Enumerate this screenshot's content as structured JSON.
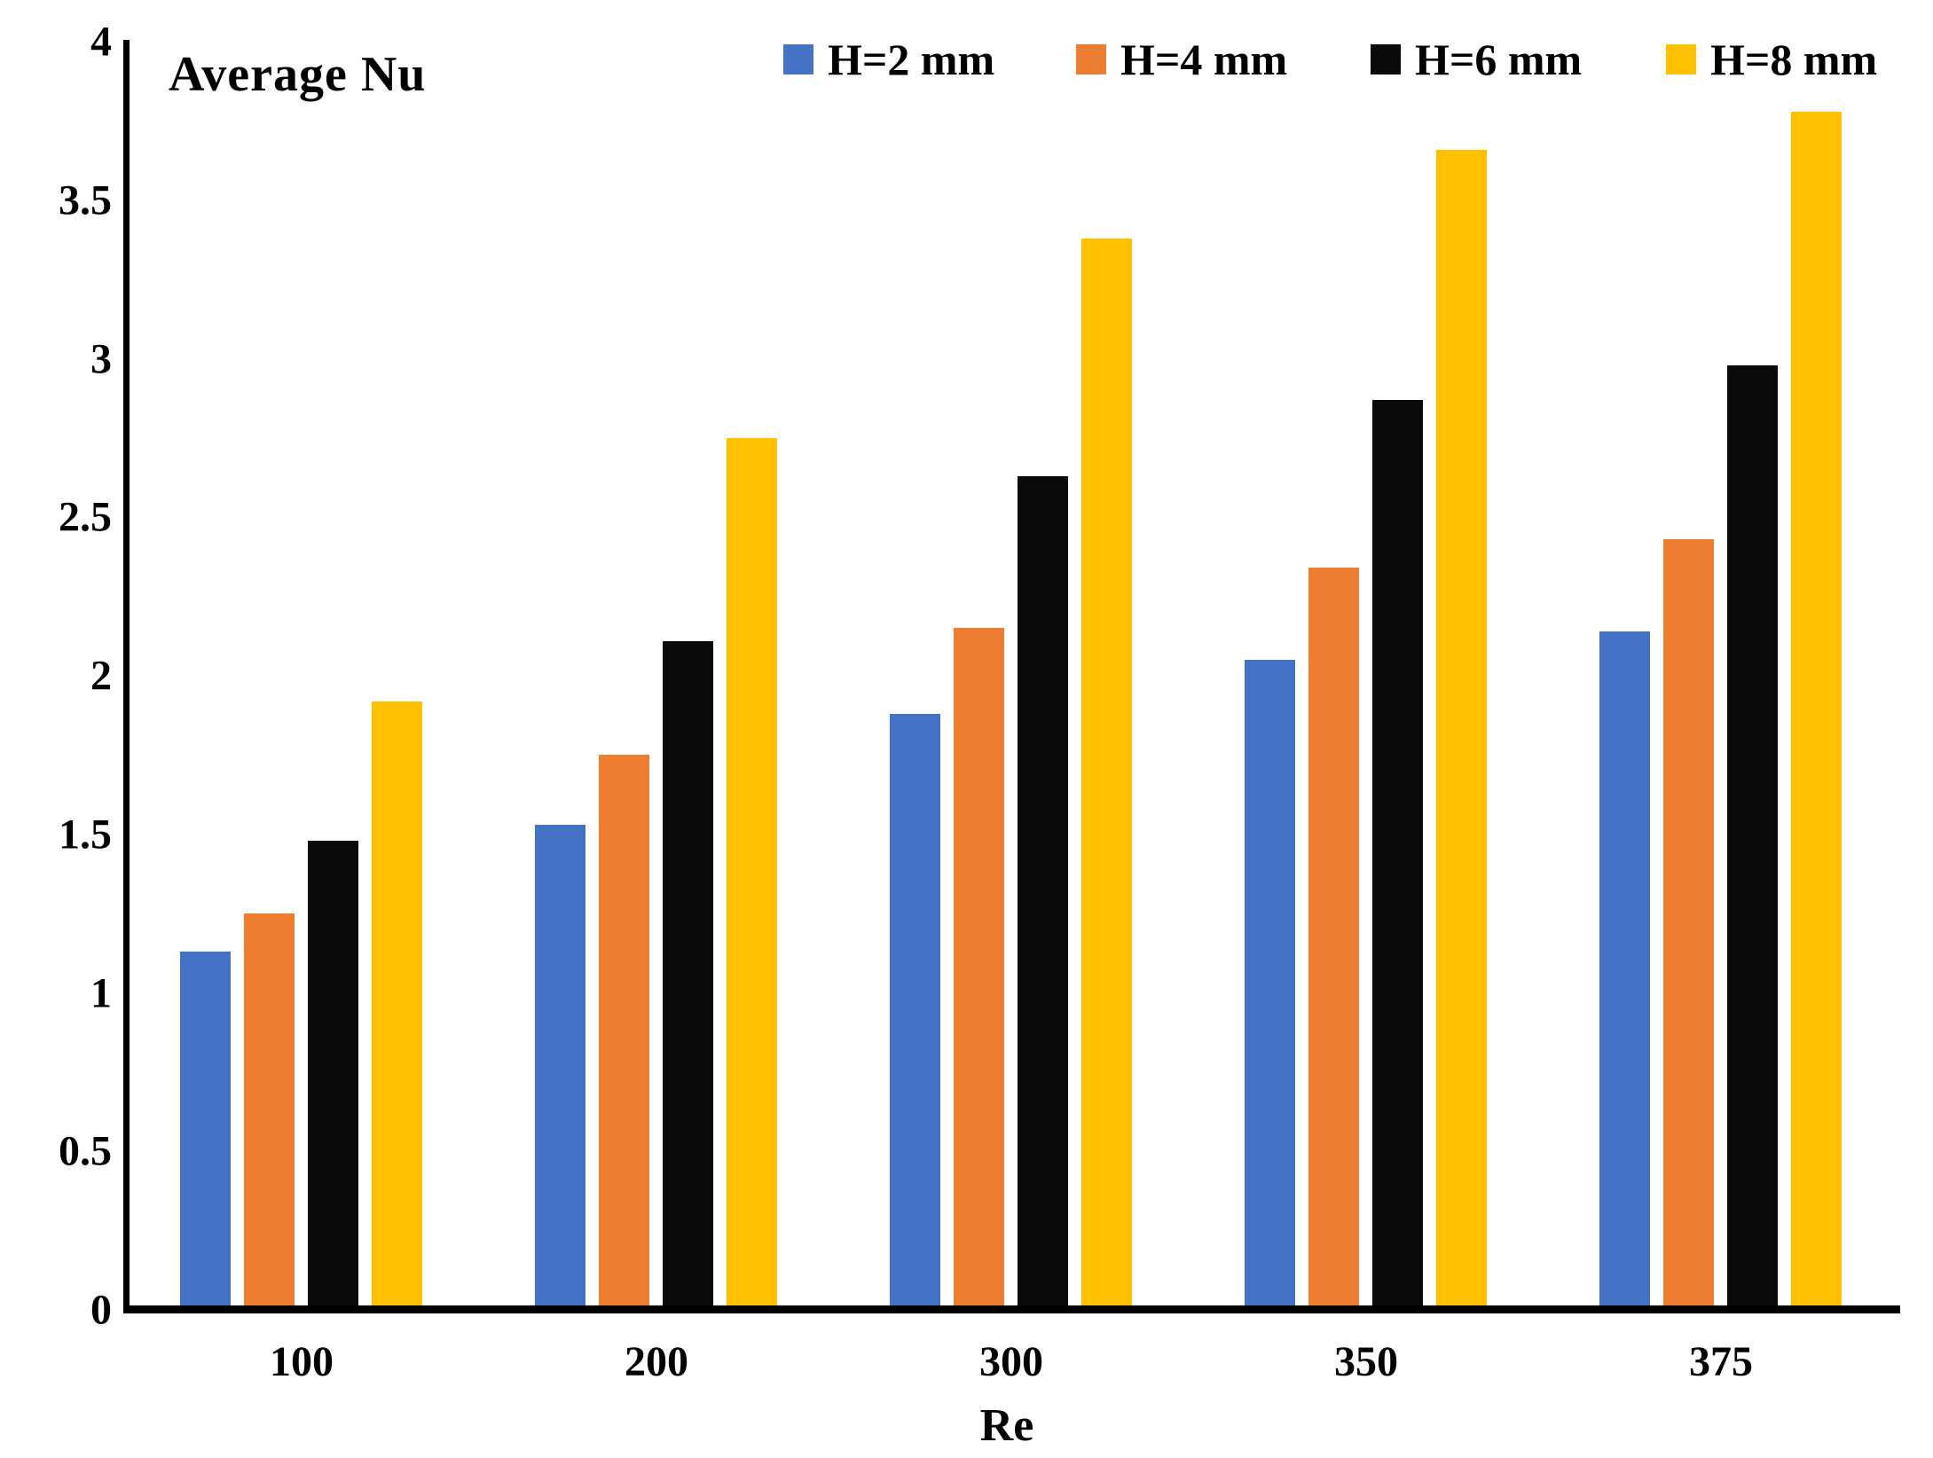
{
  "chart_data": {
    "type": "bar",
    "title": "Average Nu",
    "xlabel": "Re",
    "ylabel": "",
    "categories": [
      "100",
      "200",
      "300",
      "350",
      "375"
    ],
    "series": [
      {
        "name": "H=2 mm",
        "color": "#4472C4",
        "values": [
          1.13,
          1.53,
          1.88,
          2.05,
          2.14
        ]
      },
      {
        "name": "H=4 mm",
        "color": "#ED7D31",
        "values": [
          1.25,
          1.75,
          2.15,
          2.34,
          2.43
        ]
      },
      {
        "name": "H=6 mm",
        "color": "#0A0A0A",
        "values": [
          1.48,
          2.11,
          2.63,
          2.87,
          2.98
        ]
      },
      {
        "name": "H=8 mm",
        "color": "#FFC000",
        "values": [
          1.92,
          2.75,
          3.38,
          3.66,
          3.78
        ]
      }
    ],
    "ylim": [
      0,
      4
    ],
    "yticks": [
      "0",
      "0.5",
      "1",
      "1.5",
      "2",
      "2.5",
      "3",
      "3.5",
      "4"
    ],
    "legend_position": "top",
    "grid": false
  }
}
